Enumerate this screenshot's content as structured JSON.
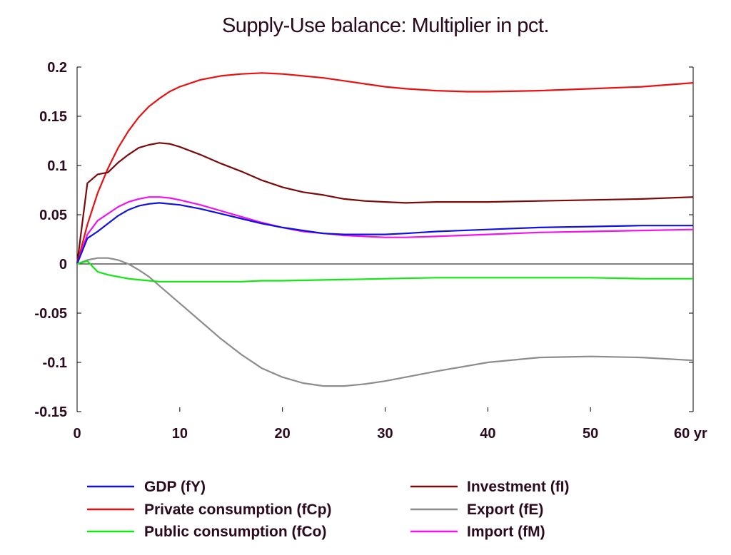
{
  "chart_data": {
    "type": "line",
    "title": "Supply-Use balance: Multiplier in pct.",
    "xlim": [
      0,
      60
    ],
    "ylim": [
      -0.15,
      0.2
    ],
    "x_ticks": [
      "0",
      "10",
      "20",
      "30",
      "40",
      "50",
      "60 yr"
    ],
    "x_tick_values": [
      0,
      10,
      20,
      30,
      40,
      50,
      60
    ],
    "y_ticks": [
      "0.2",
      "0.15",
      "0.1",
      "0.05",
      "0",
      "-0.05",
      "-0.1",
      "-0.15"
    ],
    "y_tick_values": [
      0.2,
      0.15,
      0.1,
      0.05,
      0,
      -0.05,
      -0.1,
      -0.15
    ],
    "zero_line": true,
    "grid": false,
    "legend_position": "bottom",
    "series": [
      {
        "name": "GDP (fY)",
        "color": "#1010e0",
        "x": [
          0,
          1,
          2,
          3,
          4,
          5,
          6,
          7,
          8,
          9,
          10,
          12,
          14,
          16,
          18,
          20,
          22,
          24,
          26,
          28,
          30,
          32,
          35,
          40,
          45,
          50,
          55,
          60
        ],
        "y": [
          0,
          0.026,
          0.033,
          0.041,
          0.049,
          0.055,
          0.059,
          0.061,
          0.062,
          0.061,
          0.06,
          0.056,
          0.051,
          0.046,
          0.041,
          0.037,
          0.034,
          0.031,
          0.03,
          0.03,
          0.03,
          0.031,
          0.033,
          0.035,
          0.037,
          0.038,
          0.039,
          0.039
        ]
      },
      {
        "name": "Private consumption (fCp)",
        "color": "#e81010",
        "x": [
          0,
          1,
          2,
          3,
          4,
          5,
          6,
          7,
          8,
          9,
          10,
          12,
          14,
          16,
          18,
          20,
          22,
          24,
          26,
          28,
          30,
          32,
          35,
          38,
          40,
          45,
          50,
          55,
          60
        ],
        "y": [
          0,
          0.04,
          0.072,
          0.097,
          0.118,
          0.135,
          0.149,
          0.16,
          0.168,
          0.175,
          0.18,
          0.187,
          0.191,
          0.193,
          0.194,
          0.193,
          0.191,
          0.189,
          0.186,
          0.183,
          0.18,
          0.178,
          0.176,
          0.175,
          0.175,
          0.176,
          0.178,
          0.18,
          0.184
        ]
      },
      {
        "name": "Public consumption (fCo)",
        "color": "#10e810",
        "x": [
          0,
          1,
          2,
          3,
          4,
          5,
          6,
          7,
          8,
          10,
          12,
          14,
          16,
          18,
          20,
          25,
          30,
          35,
          40,
          45,
          50,
          55,
          60
        ],
        "y": [
          0,
          0.003,
          -0.008,
          -0.011,
          -0.013,
          -0.015,
          -0.016,
          -0.017,
          -0.018,
          -0.018,
          -0.018,
          -0.018,
          -0.018,
          -0.017,
          -0.017,
          -0.016,
          -0.015,
          -0.014,
          -0.014,
          -0.014,
          -0.014,
          -0.015,
          -0.015
        ]
      },
      {
        "name": "Investment (fI)",
        "color": "#7a0a0a",
        "x": [
          0,
          1,
          2,
          3,
          4,
          5,
          6,
          7,
          8,
          9,
          10,
          12,
          14,
          16,
          18,
          20,
          22,
          24,
          26,
          28,
          30,
          32,
          35,
          40,
          45,
          50,
          55,
          60
        ],
        "y": [
          0,
          0.082,
          0.091,
          0.093,
          0.103,
          0.111,
          0.118,
          0.121,
          0.123,
          0.122,
          0.119,
          0.111,
          0.102,
          0.094,
          0.085,
          0.078,
          0.073,
          0.07,
          0.066,
          0.064,
          0.063,
          0.062,
          0.063,
          0.063,
          0.064,
          0.065,
          0.066,
          0.068
        ]
      },
      {
        "name": "Export (fE)",
        "color": "#8c8c8c",
        "x": [
          0,
          1,
          2,
          3,
          4,
          5,
          6,
          7,
          8,
          10,
          12,
          14,
          16,
          18,
          20,
          22,
          24,
          26,
          28,
          30,
          32,
          35,
          40,
          45,
          50,
          55,
          60
        ],
        "y": [
          0,
          0.004,
          0.006,
          0.006,
          0.004,
          0.0,
          -0.006,
          -0.013,
          -0.022,
          -0.04,
          -0.058,
          -0.076,
          -0.092,
          -0.106,
          -0.115,
          -0.121,
          -0.124,
          -0.124,
          -0.122,
          -0.119,
          -0.115,
          -0.109,
          -0.1,
          -0.095,
          -0.094,
          -0.095,
          -0.098
        ]
      },
      {
        "name": "Import (fM)",
        "color": "#f010f0",
        "x": [
          0,
          1,
          2,
          3,
          4,
          5,
          6,
          7,
          8,
          9,
          10,
          12,
          14,
          16,
          18,
          20,
          22,
          24,
          26,
          28,
          30,
          32,
          35,
          40,
          45,
          50,
          55,
          60
        ],
        "y": [
          0,
          0.03,
          0.044,
          0.051,
          0.058,
          0.063,
          0.066,
          0.068,
          0.068,
          0.067,
          0.065,
          0.06,
          0.054,
          0.048,
          0.042,
          0.037,
          0.033,
          0.031,
          0.029,
          0.028,
          0.027,
          0.027,
          0.028,
          0.03,
          0.032,
          0.033,
          0.034,
          0.035
        ]
      }
    ]
  }
}
